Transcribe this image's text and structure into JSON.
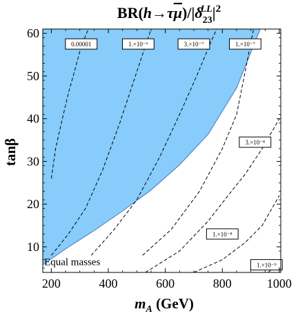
{
  "chart_data": {
    "type": "line",
    "title": "BR(h→τμ̅)/|δ₂₃ᴸᴸ|²",
    "title_parts": {
      "prefix": "BR(",
      "h": "h",
      "arrow": "→",
      "tau": "τ",
      "mu": "μ",
      "close": ")/|",
      "delta": "δ",
      "sub": "23",
      "sup": "LL",
      "end": "|",
      "power": "2"
    },
    "xlabel": "m_A (GeV)",
    "xlabel_parts": {
      "m": "m",
      "sub": "A",
      "rest": " (GeV)"
    },
    "ylabel": "tanβ",
    "xlim": [
      170,
      1005
    ],
    "ylim": [
      4,
      61
    ],
    "x_ticks": [
      200,
      400,
      600,
      800,
      1000
    ],
    "y_ticks": [
      10,
      20,
      30,
      40,
      50,
      60
    ],
    "excluded_region": {
      "color": "#87ccfa",
      "boundary": [
        {
          "x": 170,
          "y": 5.8
        },
        {
          "x": 250,
          "y": 9.5
        },
        {
          "x": 350,
          "y": 13.8
        },
        {
          "x": 450,
          "y": 18.4
        },
        {
          "x": 550,
          "y": 23.3
        },
        {
          "x": 650,
          "y": 29.2
        },
        {
          "x": 750,
          "y": 36.3
        },
        {
          "x": 850,
          "y": 47.2
        },
        {
          "x": 933,
          "y": 61.0
        }
      ]
    },
    "series": [
      {
        "label": "0.00001",
        "points": [
          {
            "x": 200,
            "y": 26
          },
          {
            "x": 215,
            "y": 33
          },
          {
            "x": 235,
            "y": 39
          },
          {
            "x": 260,
            "y": 46
          },
          {
            "x": 285,
            "y": 52
          },
          {
            "x": 305,
            "y": 57
          },
          {
            "x": 330,
            "y": 61
          }
        ]
      },
      {
        "label": "1.×10⁻⁶",
        "points": [
          {
            "x": 200,
            "y": 8
          },
          {
            "x": 260,
            "y": 13
          },
          {
            "x": 320,
            "y": 19
          },
          {
            "x": 380,
            "y": 28
          },
          {
            "x": 440,
            "y": 39
          },
          {
            "x": 490,
            "y": 49
          },
          {
            "x": 530,
            "y": 57
          },
          {
            "x": 550,
            "y": 61
          }
        ]
      },
      {
        "label": "3.×10⁻⁷",
        "points": [
          {
            "x": 340,
            "y": 8
          },
          {
            "x": 420,
            "y": 14
          },
          {
            "x": 500,
            "y": 21
          },
          {
            "x": 580,
            "y": 31
          },
          {
            "x": 650,
            "y": 41
          },
          {
            "x": 710,
            "y": 50
          },
          {
            "x": 760,
            "y": 58
          },
          {
            "x": 780,
            "y": 61
          }
        ]
      },
      {
        "label": "1.×10⁻⁷",
        "points": [
          {
            "x": 520,
            "y": 8
          },
          {
            "x": 620,
            "y": 14
          },
          {
            "x": 720,
            "y": 23
          },
          {
            "x": 800,
            "y": 33
          },
          {
            "x": 850,
            "y": 41
          },
          {
            "x": 880,
            "y": 51
          },
          {
            "x": 900,
            "y": 58
          },
          {
            "x": 910,
            "y": 61
          }
        ]
      },
      {
        "label": "3.×10⁻⁸",
        "points": [
          {
            "x": 530,
            "y": 4
          },
          {
            "x": 650,
            "y": 9
          },
          {
            "x": 750,
            "y": 16
          },
          {
            "x": 820,
            "y": 22
          },
          {
            "x": 880,
            "y": 27
          },
          {
            "x": 940,
            "y": 33
          },
          {
            "x": 1000,
            "y": 40
          }
        ]
      },
      {
        "label": "1.×10⁻⁸",
        "points": [
          {
            "x": 700,
            "y": 4
          },
          {
            "x": 800,
            "y": 7
          },
          {
            "x": 880,
            "y": 11
          },
          {
            "x": 940,
            "y": 15
          },
          {
            "x": 1000,
            "y": 22
          }
        ]
      },
      {
        "label": "1.×10⁻⁹",
        "points": [
          {
            "x": 960,
            "y": 4
          },
          {
            "x": 1000,
            "y": 6
          }
        ]
      }
    ],
    "contour_labels": [
      {
        "text": "0.00001",
        "x": 305,
        "y": 57.5
      },
      {
        "text": "1.×10⁻⁶",
        "x": 505,
        "y": 57.5
      },
      {
        "text": "3.×10⁻⁷",
        "x": 700,
        "y": 57.5
      },
      {
        "text": "1.×10⁻⁷",
        "x": 880,
        "y": 57.5
      },
      {
        "text": "3.×10⁻⁸",
        "x": 915,
        "y": 34.5
      },
      {
        "text": "1.×10⁻⁸",
        "x": 800,
        "y": 13.0
      },
      {
        "text": "1.×10⁻⁹",
        "x": 955,
        "y": 5.8
      }
    ],
    "annotation": {
      "text": "Equal masses",
      "x": 175,
      "y": 6.5
    },
    "grid": false,
    "legend": "none"
  }
}
